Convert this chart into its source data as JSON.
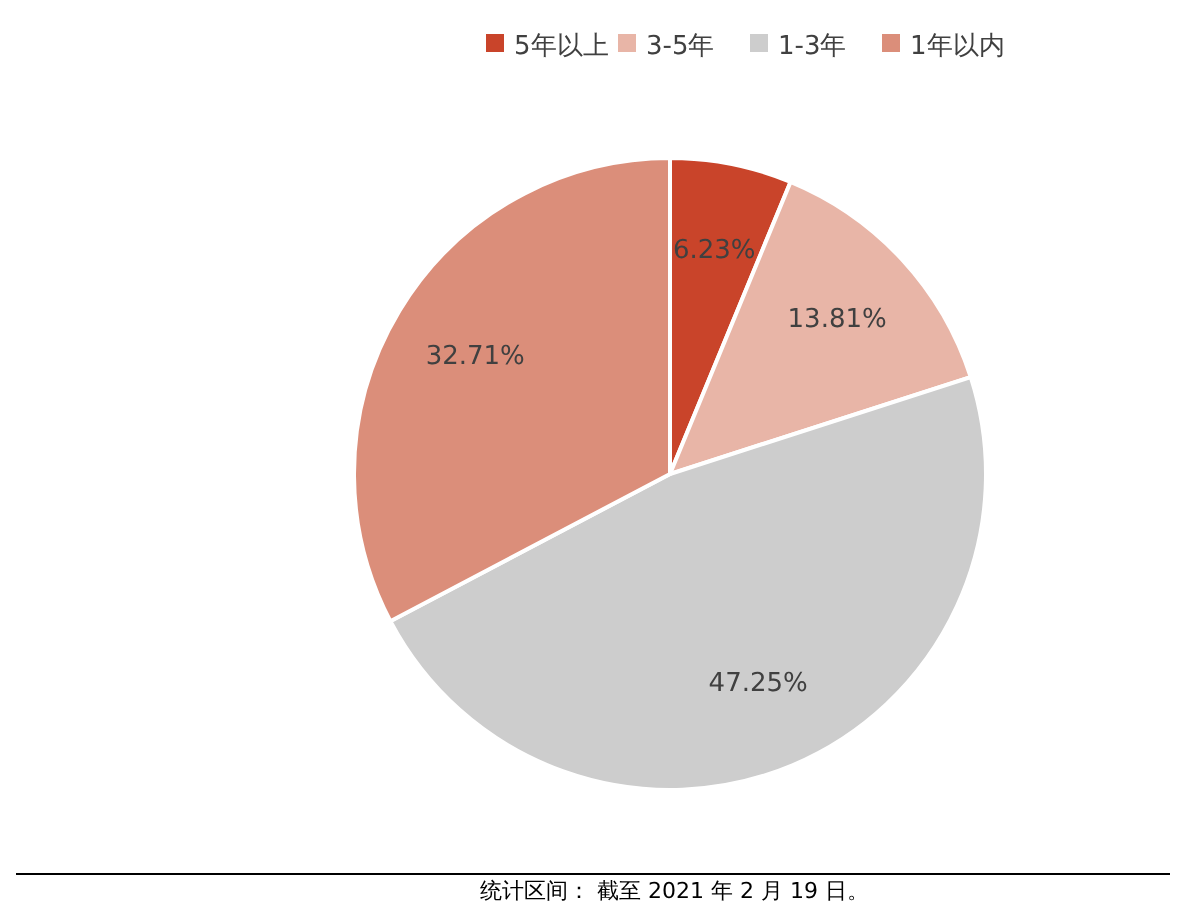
{
  "chart_data": {
    "type": "pie",
    "categories": [
      "5年以上",
      "3-5年",
      "1-3年",
      "1年以内"
    ],
    "values": [
      6.23,
      13.81,
      47.25,
      32.71
    ],
    "colors": [
      "#c9442a",
      "#e8b5a7",
      "#cdcdcd",
      "#db8e7a"
    ],
    "value_labels": [
      "6.23%",
      "13.81%",
      "47.25%",
      "32.71%"
    ],
    "legend": "top",
    "annotations": [
      "统计区间： 截至 2021 年 2 月 19 日。"
    ]
  }
}
